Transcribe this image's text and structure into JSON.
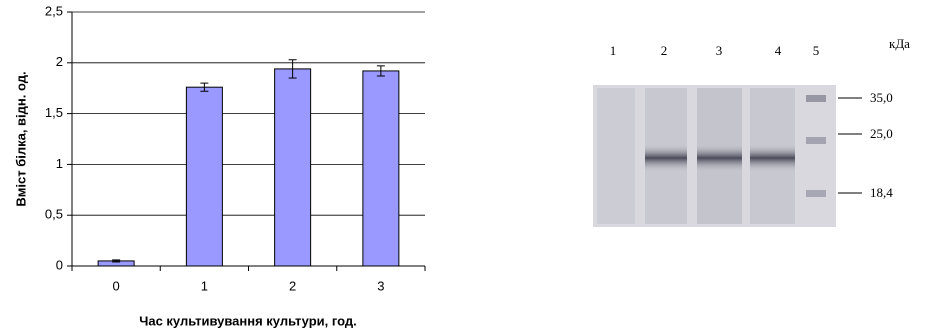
{
  "chart_data": {
    "type": "bar",
    "y_label": "Вміст білка, відн. од.",
    "x_label": "Час культивування культури, год.",
    "categories": [
      "0",
      "1",
      "2",
      "3"
    ],
    "values": [
      0.05,
      1.76,
      1.94,
      1.92
    ],
    "errors": [
      0.01,
      0.04,
      0.09,
      0.05
    ],
    "color": "#9999ff",
    "ylim": [
      0,
      2.5
    ],
    "yticks": [
      0,
      {
        "value": 0.5,
        "label": "0,5"
      },
      1,
      {
        "value": 1.5,
        "label": "1,5"
      },
      2,
      {
        "value": 2.5,
        "label": "2,5"
      }
    ],
    "grid": true
  },
  "gel": {
    "lanes": [
      "1",
      "2",
      "3",
      "4",
      "5"
    ],
    "unit": "кДа",
    "markers": [
      "35,0",
      "25,0",
      "18,4"
    ]
  }
}
